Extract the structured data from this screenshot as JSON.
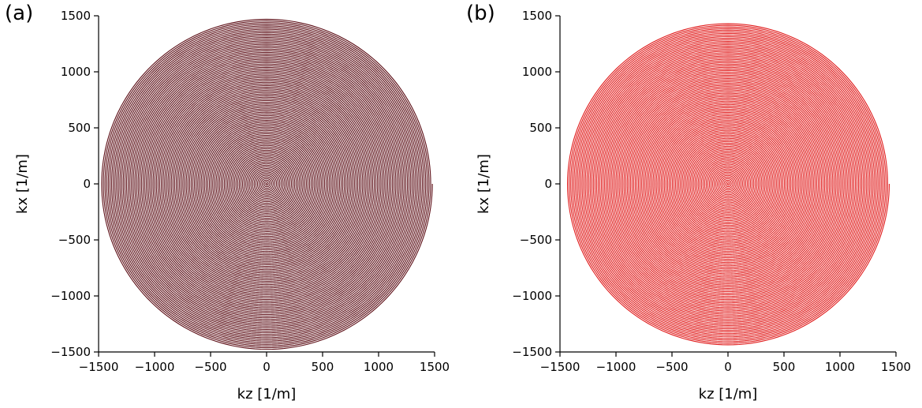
{
  "chart_data": [
    {
      "type": "line",
      "panel_label": "(a)",
      "description_curve": "Archimedean spiral trajectory (spiral k-space sampling)",
      "xlabel": "kz [1/m]",
      "ylabel": "kx [1/m]",
      "xlim": [
        -1500,
        1500
      ],
      "ylim": [
        -1500,
        1500
      ],
      "xticks": [
        -1500,
        -1000,
        -500,
        0,
        500,
        1000,
        1500
      ],
      "yticks": [
        -1500,
        -1000,
        -500,
        0,
        500,
        1000,
        1500
      ],
      "xtick_labels": [
        "−1500",
        "−1000",
        "−500",
        "0",
        "500",
        "1000",
        "1500"
      ],
      "ytick_labels": [
        "−1500",
        "−1000",
        "−500",
        "0",
        "500",
        "1000",
        "1500"
      ],
      "max_radius": 1480,
      "turns": 100,
      "color": "#5a0a12",
      "grid": false
    },
    {
      "type": "line",
      "panel_label": "(b)",
      "description_curve": "Archimedean spiral trajectory (spiral k-space sampling)",
      "xlabel": "kz [1/m]",
      "ylabel": "kx [1/m]",
      "xlim": [
        -1500,
        1500
      ],
      "ylim": [
        -1500,
        1500
      ],
      "xticks": [
        -1500,
        -1000,
        -500,
        0,
        500,
        1000,
        1500
      ],
      "yticks": [
        -1500,
        -1000,
        -500,
        0,
        500,
        1000,
        1500
      ],
      "xtick_labels": [
        "−1500",
        "−1000",
        "−500",
        "0",
        "500",
        "1000",
        "1500"
      ],
      "ytick_labels": [
        "−1500",
        "−1000",
        "−500",
        "0",
        "500",
        "1000",
        "1500"
      ],
      "max_radius": 1440,
      "turns": 100,
      "color": "#e01818",
      "grid": false
    }
  ]
}
